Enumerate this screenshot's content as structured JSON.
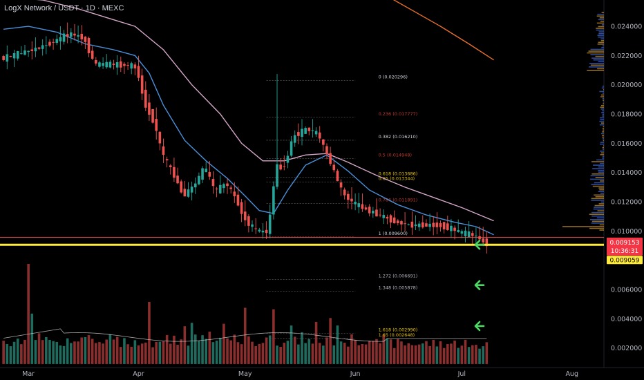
{
  "chart_title": "LogX Network / USDT · 1D · MEXC",
  "colors": {
    "up": "#26a69a",
    "down": "#ef5350",
    "ma_fast": "#4a90d9",
    "ma_slow": "#d4a8c8",
    "ma_long": "#e8702a",
    "support": "#ffeb3b",
    "resistance": "#ef5350",
    "fib_line": "#555555",
    "arrow": "#4cd964"
  },
  "price_labels": {
    "current": "0.009153",
    "countdown": "10:36:31",
    "support": "0.009059"
  },
  "chart_data": {
    "type": "candlestick",
    "title": "LogX Network / USDT · 1D · MEXC",
    "ylim": [
      0.00085,
      0.0258
    ],
    "y_ticks": [
      {
        "v": 0.024,
        "label": "0.024000"
      },
      {
        "v": 0.022,
        "label": "0.022000"
      },
      {
        "v": 0.02,
        "label": "0.020000"
      },
      {
        "v": 0.018,
        "label": "0.018000"
      },
      {
        "v": 0.016,
        "label": "0.016000"
      },
      {
        "v": 0.014,
        "label": "0.014000"
      },
      {
        "v": 0.012,
        "label": "0.012000"
      },
      {
        "v": 0.01,
        "label": "0.010000"
      },
      {
        "v": 0.006,
        "label": "0.006000"
      },
      {
        "v": 0.004,
        "label": "0.004000"
      },
      {
        "v": 0.002,
        "label": "0.002000"
      }
    ],
    "x_ticks": [
      {
        "day": 0,
        "label": "Mar"
      },
      {
        "day": 31,
        "label": "Apr"
      },
      {
        "day": 61,
        "label": "May"
      },
      {
        "day": 92,
        "label": "Jun"
      },
      {
        "day": 122,
        "label": "Jul"
      },
      {
        "day": 153,
        "label": "Aug"
      }
    ],
    "key_points": [
      [
        -7,
        0.0218
      ],
      [
        3,
        0.0225
      ],
      [
        7,
        0.0229
      ],
      [
        12,
        0.0235
      ],
      [
        16,
        0.0232
      ],
      [
        19,
        0.0214
      ],
      [
        24,
        0.0214
      ],
      [
        30,
        0.0213
      ],
      [
        31,
        0.021
      ],
      [
        33,
        0.0188
      ],
      [
        36,
        0.0173
      ],
      [
        38,
        0.0153
      ],
      [
        42,
        0.0135
      ],
      [
        44,
        0.0124
      ],
      [
        47,
        0.0131
      ],
      [
        50,
        0.0144
      ],
      [
        53,
        0.0127
      ],
      [
        56,
        0.0133
      ],
      [
        59,
        0.0121
      ],
      [
        61,
        0.0109
      ],
      [
        64,
        0.0101
      ],
      [
        67,
        0.0099
      ],
      [
        68,
        0.0101
      ],
      [
        70,
        0.0145
      ],
      [
        72,
        0.0142
      ],
      [
        75,
        0.0165
      ],
      [
        79,
        0.017
      ],
      [
        82,
        0.0166
      ],
      [
        85,
        0.0149
      ],
      [
        87,
        0.0137
      ],
      [
        89,
        0.0125
      ],
      [
        92,
        0.0119
      ],
      [
        96,
        0.0114
      ],
      [
        100,
        0.011
      ],
      [
        104,
        0.0106
      ],
      [
        108,
        0.0104
      ],
      [
        112,
        0.0104
      ],
      [
        116,
        0.0104
      ],
      [
        119,
        0.0102
      ],
      [
        122,
        0.0099
      ],
      [
        126,
        0.0097
      ],
      [
        129,
        0.00915
      ]
    ],
    "day_range": [
      -8,
      162
    ],
    "moving_averages": [
      {
        "color_key": "ma_fast",
        "points": [
          [
            -7,
            0.0238
          ],
          [
            0,
            0.024
          ],
          [
            8,
            0.0236
          ],
          [
            16,
            0.0228
          ],
          [
            24,
            0.0224
          ],
          [
            30,
            0.022
          ],
          [
            34,
            0.0208
          ],
          [
            38,
            0.0186
          ],
          [
            44,
            0.0162
          ],
          [
            50,
            0.0148
          ],
          [
            56,
            0.0136
          ],
          [
            61,
            0.0124
          ],
          [
            65,
            0.0114
          ],
          [
            69,
            0.0112
          ],
          [
            73,
            0.0128
          ],
          [
            78,
            0.0145
          ],
          [
            84,
            0.0152
          ],
          [
            90,
            0.0141
          ],
          [
            96,
            0.0128
          ],
          [
            104,
            0.0118
          ],
          [
            112,
            0.0111
          ],
          [
            120,
            0.0106
          ],
          [
            126,
            0.0103
          ],
          [
            131,
            0.00975
          ]
        ]
      },
      {
        "color_key": "ma_slow",
        "points": [
          [
            -7,
            0.026
          ],
          [
            4,
            0.0258
          ],
          [
            14,
            0.0252
          ],
          [
            22,
            0.0246
          ],
          [
            30,
            0.024
          ],
          [
            38,
            0.0224
          ],
          [
            46,
            0.02
          ],
          [
            54,
            0.018
          ],
          [
            60,
            0.016
          ],
          [
            66,
            0.0148
          ],
          [
            72,
            0.0148
          ],
          [
            78,
            0.0152
          ],
          [
            84,
            0.0153
          ],
          [
            90,
            0.0147
          ],
          [
            98,
            0.0138
          ],
          [
            106,
            0.013
          ],
          [
            114,
            0.0123
          ],
          [
            122,
            0.0116
          ],
          [
            131,
            0.0107
          ]
        ]
      },
      {
        "color_key": "ma_long",
        "points": [
          [
            100,
            0.0262
          ],
          [
            108,
            0.0251
          ],
          [
            116,
            0.024
          ],
          [
            124,
            0.0228
          ],
          [
            131,
            0.0217
          ]
        ]
      }
    ],
    "fibonacci": {
      "day_start": 67,
      "day_end": 92,
      "levels": [
        {
          "ratio": "0",
          "price": "0.020296",
          "v": 0.020296,
          "color": "#d1d4dc"
        },
        {
          "ratio": "0.236",
          "price": "0.017777",
          "v": 0.017777,
          "color": "#c0392b"
        },
        {
          "ratio": "0.382",
          "price": "0.016210",
          "v": 0.01621,
          "color": "#d1d4dc"
        },
        {
          "ratio": "0.5",
          "price": "0.014948",
          "v": 0.014948,
          "color": "#c0392b"
        },
        {
          "ratio": "0.618",
          "price": "0.013686",
          "v": 0.013686,
          "color": "#e6c300"
        },
        {
          "ratio": "0.65",
          "price": "0.013344",
          "v": 0.013344,
          "color": "#e6c300"
        },
        {
          "ratio": "0.786",
          "price": "0.011891",
          "v": 0.011891,
          "color": "#c0392b"
        },
        {
          "ratio": "1",
          "price": "0.009600",
          "v": 0.0096,
          "color": "#d1d4dc"
        },
        {
          "ratio": "1.272",
          "price": "0.006691",
          "v": 0.006691,
          "color": "#b2b5be"
        },
        {
          "ratio": "1.348",
          "price": "0.005878",
          "v": 0.005878,
          "color": "#b2b5be"
        },
        {
          "ratio": "1.618",
          "price": "0.002990",
          "v": 0.00299,
          "color": "#e6c300"
        },
        {
          "ratio": "1.65",
          "price": "0.002648",
          "v": 0.002648,
          "color": "#e6c300"
        }
      ]
    },
    "horizontal_lines": [
      {
        "v": 0.00956,
        "color_key": "resistance"
      },
      {
        "v": 0.00906,
        "color_key": "support"
      }
    ],
    "volume_scale_max": 0.0069,
    "arrows_at": [
      0.00906,
      0.0063,
      0.0035
    ]
  }
}
